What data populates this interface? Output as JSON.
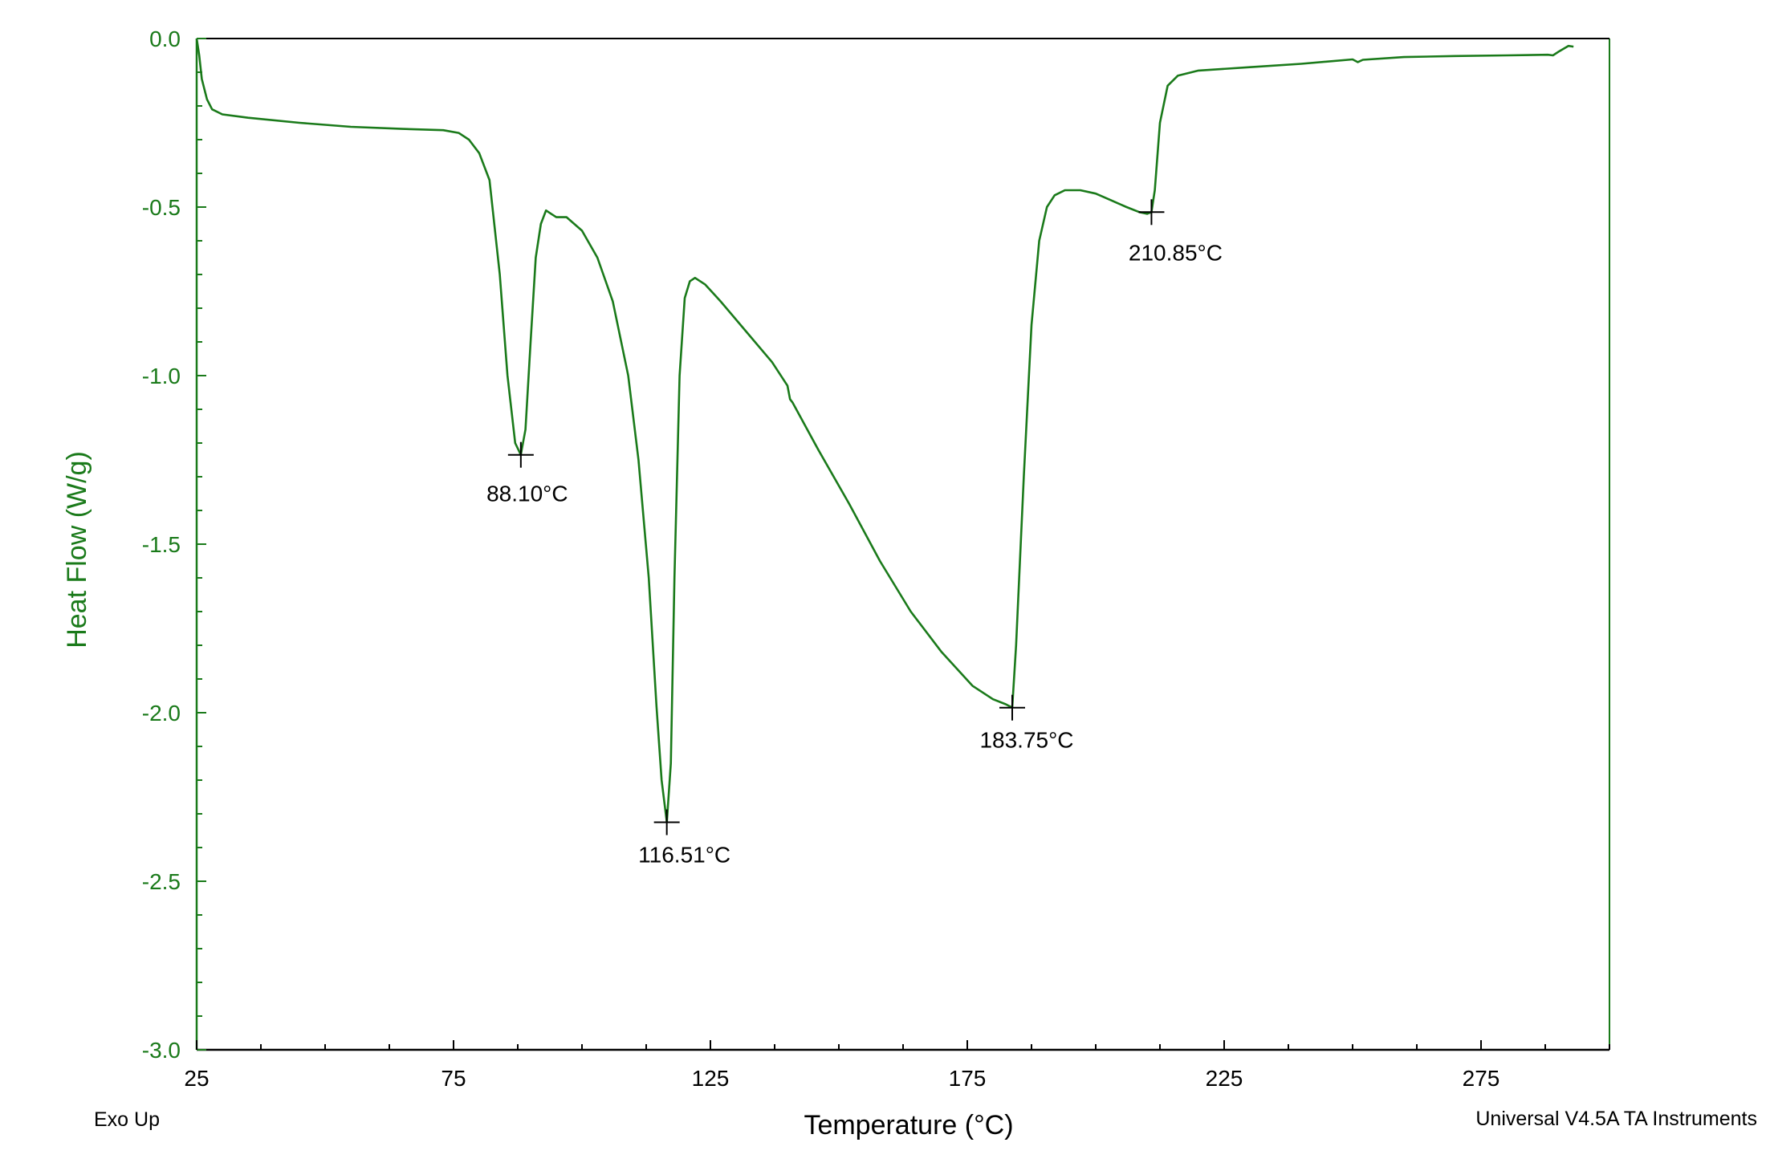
{
  "colors": {
    "series": "#1a7a1a",
    "axis": "#1a7a1a",
    "xaxis": "#000000",
    "marker": "#000000"
  },
  "chart_data": {
    "type": "line",
    "title": "",
    "xlabel": "Temperature (°C)",
    "ylabel": "Heat Flow (W/g)",
    "xlim": [
      25,
      300
    ],
    "ylim": [
      -3.0,
      0.0
    ],
    "xticks": [
      25,
      75,
      125,
      175,
      225,
      275
    ],
    "xtick_labels": [
      "25",
      "75",
      "125",
      "175",
      "225",
      "275"
    ],
    "yticks": [
      0.0,
      -0.5,
      -1.0,
      -1.5,
      -2.0,
      -2.5,
      -3.0
    ],
    "ytick_labels": [
      "0.0",
      "-0.5",
      "-1.0",
      "-1.5",
      "-2.0",
      "-2.5",
      "-3.0"
    ],
    "grid": false,
    "legend": "none",
    "series": [
      {
        "x": [
          25.0,
          25.5,
          26.0,
          27.0,
          28.0,
          30.0,
          35.0,
          45.0,
          55.0,
          65.0,
          73.0,
          76.0,
          78.0,
          80.0,
          82.0,
          84.0,
          85.5,
          87.0,
          88.1,
          89.0,
          90.0,
          91.0,
          92.0,
          93.0,
          94.0,
          95.0,
          97.0,
          100.0,
          103.0,
          106.0,
          109.0,
          111.0,
          113.0,
          114.5,
          115.5,
          116.51,
          117.3,
          118.0,
          119.0,
          120.0,
          121.0,
          122.0,
          124.0,
          127.0,
          132.0,
          137.0,
          140.0,
          140.5,
          141.0,
          146.0,
          152.0,
          158.0,
          164.0,
          170.0,
          176.0,
          180.0,
          182.5,
          183.75,
          184.5,
          186.0,
          187.5,
          189.0,
          190.5,
          192.0,
          194.0,
          197.0,
          200.0,
          203.0,
          206.0,
          208.5,
          210.0,
          210.85,
          211.5,
          212.5,
          214.0,
          216.0,
          220.0,
          230.0,
          240.0,
          250.0,
          251.0,
          252.0,
          260.0,
          270.0,
          280.0,
          288.0,
          289.0,
          290.0,
          292.0,
          293.0
        ],
        "y": [
          0.0,
          -0.05,
          -0.12,
          -0.18,
          -0.21,
          -0.225,
          -0.235,
          -0.25,
          -0.262,
          -0.268,
          -0.272,
          -0.28,
          -0.3,
          -0.34,
          -0.42,
          -0.7,
          -1.0,
          -1.2,
          -1.235,
          -1.16,
          -0.9,
          -0.65,
          -0.55,
          -0.51,
          -0.52,
          -0.53,
          -0.53,
          -0.57,
          -0.65,
          -0.78,
          -1.0,
          -1.25,
          -1.6,
          -1.98,
          -2.2,
          -2.325,
          -2.15,
          -1.6,
          -1.0,
          -0.77,
          -0.72,
          -0.71,
          -0.73,
          -0.78,
          -0.87,
          -0.96,
          -1.03,
          -1.07,
          -1.08,
          -1.22,
          -1.38,
          -1.55,
          -1.7,
          -1.82,
          -1.92,
          -1.96,
          -1.975,
          -1.985,
          -1.8,
          -1.3,
          -0.85,
          -0.6,
          -0.5,
          -0.465,
          -0.45,
          -0.45,
          -0.46,
          -0.48,
          -0.5,
          -0.515,
          -0.52,
          -0.515,
          -0.45,
          -0.25,
          -0.14,
          -0.11,
          -0.095,
          -0.085,
          -0.075,
          -0.062,
          -0.07,
          -0.063,
          -0.055,
          -0.052,
          -0.05,
          -0.048,
          -0.05,
          -0.04,
          -0.022,
          -0.024
        ]
      }
    ],
    "annotations": [
      {
        "label": "88.10°C",
        "x": 88.1,
        "y": -1.235
      },
      {
        "label": "116.51°C",
        "x": 116.51,
        "y": -2.325
      },
      {
        "label": "183.75°C",
        "x": 183.75,
        "y": -1.985
      },
      {
        "label": "210.85°C",
        "x": 210.85,
        "y": -0.515
      }
    ]
  },
  "footer": {
    "left": "Exo Up",
    "right": "Universal V4.5A TA Instruments"
  }
}
